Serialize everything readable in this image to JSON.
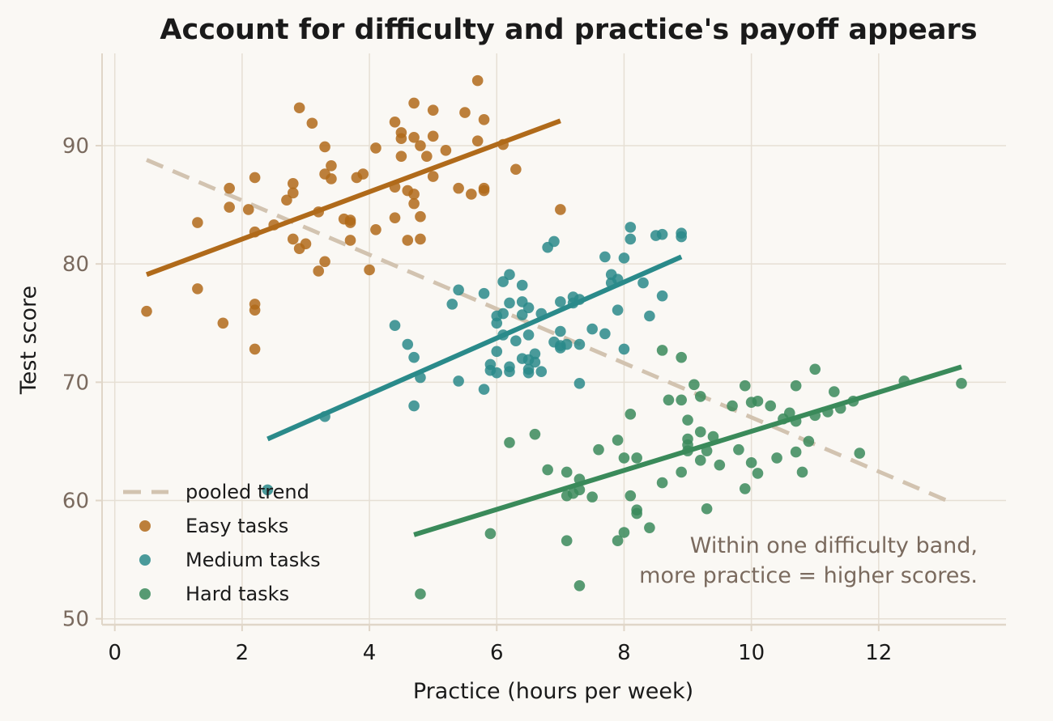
{
  "chart_data": {
    "type": "scatter",
    "title": "Account for difficulty and practice's payoff appears",
    "xlabel": "Practice (hours per week)",
    "ylabel": "Test score",
    "xlim": [
      -0.2,
      14.0
    ],
    "ylim": [
      49.5,
      97.8
    ],
    "xticks": [
      0,
      2,
      4,
      6,
      8,
      10,
      12
    ],
    "yticks": [
      50,
      60,
      70,
      80,
      90
    ],
    "grid": true,
    "legend_position": "lower-left",
    "annotation": [
      "Within one difficulty band,",
      "more practice = higher scores."
    ],
    "pooled_trend": {
      "name": "pooled trend",
      "color": "#d2c3b0",
      "style": "dashed",
      "x": [
        0.5,
        13.2
      ],
      "y": [
        88.8,
        59.7
      ]
    },
    "series": [
      {
        "name": "Easy tasks",
        "color": "#b06a1a",
        "fit": {
          "x": [
            0.5,
            7.0
          ],
          "y": [
            79.1,
            92.1
          ]
        },
        "points": [
          [
            0.5,
            76.0
          ],
          [
            1.3,
            83.5
          ],
          [
            1.3,
            77.9
          ],
          [
            1.7,
            75.0
          ],
          [
            1.8,
            86.4
          ],
          [
            1.8,
            84.8
          ],
          [
            2.1,
            84.6
          ],
          [
            2.2,
            82.7
          ],
          [
            2.2,
            76.6
          ],
          [
            2.2,
            76.1
          ],
          [
            2.2,
            87.3
          ],
          [
            2.2,
            72.8
          ],
          [
            2.5,
            83.3
          ],
          [
            2.7,
            85.4
          ],
          [
            2.8,
            82.1
          ],
          [
            2.8,
            86.0
          ],
          [
            2.8,
            86.8
          ],
          [
            2.9,
            93.2
          ],
          [
            2.9,
            81.3
          ],
          [
            3.0,
            81.7
          ],
          [
            3.1,
            91.9
          ],
          [
            3.2,
            84.4
          ],
          [
            3.2,
            79.4
          ],
          [
            3.3,
            87.6
          ],
          [
            3.3,
            89.9
          ],
          [
            3.3,
            80.2
          ],
          [
            3.4,
            88.3
          ],
          [
            3.4,
            87.2
          ],
          [
            3.6,
            83.8
          ],
          [
            3.7,
            83.7
          ],
          [
            3.7,
            83.5
          ],
          [
            3.7,
            82.0
          ],
          [
            3.8,
            87.3
          ],
          [
            3.9,
            87.6
          ],
          [
            4.0,
            79.5
          ],
          [
            4.1,
            89.8
          ],
          [
            4.1,
            82.9
          ],
          [
            4.4,
            92.0
          ],
          [
            4.4,
            86.5
          ],
          [
            4.4,
            83.9
          ],
          [
            4.5,
            90.6
          ],
          [
            4.5,
            91.1
          ],
          [
            4.5,
            89.1
          ],
          [
            4.6,
            82.0
          ],
          [
            4.6,
            86.2
          ],
          [
            4.7,
            90.7
          ],
          [
            4.7,
            93.6
          ],
          [
            4.7,
            85.1
          ],
          [
            4.7,
            85.9
          ],
          [
            4.8,
            84.0
          ],
          [
            4.8,
            82.1
          ],
          [
            4.8,
            90.0
          ],
          [
            4.9,
            89.1
          ],
          [
            5.0,
            87.4
          ],
          [
            5.0,
            90.8
          ],
          [
            5.0,
            93.0
          ],
          [
            5.2,
            89.6
          ],
          [
            5.4,
            86.4
          ],
          [
            5.5,
            92.8
          ],
          [
            5.6,
            85.9
          ],
          [
            5.7,
            95.5
          ],
          [
            5.7,
            90.4
          ],
          [
            5.8,
            86.4
          ],
          [
            5.8,
            86.2
          ],
          [
            5.8,
            92.2
          ],
          [
            6.1,
            90.1
          ],
          [
            6.3,
            88.0
          ],
          [
            7.0,
            84.6
          ]
        ]
      },
      {
        "name": "Medium tasks",
        "color": "#2a8a8a",
        "fit": {
          "x": [
            2.4,
            8.9
          ],
          "y": [
            65.2,
            80.6
          ]
        },
        "points": [
          [
            2.4,
            60.9
          ],
          [
            3.3,
            67.1
          ],
          [
            4.4,
            74.8
          ],
          [
            4.6,
            73.2
          ],
          [
            4.7,
            68.0
          ],
          [
            4.7,
            72.1
          ],
          [
            4.8,
            70.4
          ],
          [
            5.3,
            76.6
          ],
          [
            5.4,
            70.1
          ],
          [
            5.4,
            77.8
          ],
          [
            5.8,
            77.5
          ],
          [
            5.8,
            69.4
          ],
          [
            5.9,
            71.0
          ],
          [
            5.9,
            71.5
          ],
          [
            6.0,
            70.8
          ],
          [
            6.0,
            75.0
          ],
          [
            6.0,
            72.6
          ],
          [
            6.0,
            75.6
          ],
          [
            6.1,
            74.0
          ],
          [
            6.1,
            78.5
          ],
          [
            6.1,
            75.8
          ],
          [
            6.2,
            76.7
          ],
          [
            6.2,
            79.1
          ],
          [
            6.2,
            70.9
          ],
          [
            6.2,
            71.3
          ],
          [
            6.3,
            73.5
          ],
          [
            6.4,
            75.7
          ],
          [
            6.4,
            78.2
          ],
          [
            6.4,
            76.8
          ],
          [
            6.4,
            72.0
          ],
          [
            6.5,
            74.0
          ],
          [
            6.5,
            71.1
          ],
          [
            6.5,
            70.8
          ],
          [
            6.5,
            76.3
          ],
          [
            6.5,
            71.9
          ],
          [
            6.6,
            72.4
          ],
          [
            6.6,
            71.7
          ],
          [
            6.7,
            70.9
          ],
          [
            6.7,
            75.8
          ],
          [
            6.8,
            81.4
          ],
          [
            6.9,
            81.9
          ],
          [
            6.9,
            73.4
          ],
          [
            7.0,
            76.8
          ],
          [
            7.0,
            74.3
          ],
          [
            7.0,
            73.1
          ],
          [
            7.0,
            72.9
          ],
          [
            7.1,
            73.2
          ],
          [
            7.2,
            76.7
          ],
          [
            7.2,
            77.2
          ],
          [
            7.3,
            77.0
          ],
          [
            7.3,
            73.2
          ],
          [
            7.3,
            69.9
          ],
          [
            7.5,
            74.5
          ],
          [
            7.7,
            74.1
          ],
          [
            7.7,
            80.6
          ],
          [
            7.8,
            79.1
          ],
          [
            7.8,
            78.4
          ],
          [
            7.9,
            76.1
          ],
          [
            7.9,
            78.7
          ],
          [
            8.0,
            80.5
          ],
          [
            8.0,
            72.8
          ],
          [
            8.1,
            82.1
          ],
          [
            8.1,
            83.1
          ],
          [
            8.3,
            78.4
          ],
          [
            8.4,
            75.6
          ],
          [
            8.5,
            82.4
          ],
          [
            8.6,
            82.5
          ],
          [
            8.6,
            77.3
          ],
          [
            8.9,
            82.6
          ],
          [
            8.9,
            82.3
          ]
        ]
      },
      {
        "name": "Hard tasks",
        "color": "#3a8a5a",
        "fit": {
          "x": [
            4.7,
            13.3
          ],
          "y": [
            57.1,
            71.3
          ]
        },
        "points": [
          [
            4.8,
            52.1
          ],
          [
            5.9,
            57.2
          ],
          [
            6.2,
            64.9
          ],
          [
            6.6,
            65.6
          ],
          [
            6.8,
            62.6
          ],
          [
            7.1,
            56.6
          ],
          [
            7.1,
            62.4
          ],
          [
            7.1,
            60.4
          ],
          [
            7.2,
            60.6
          ],
          [
            7.3,
            52.8
          ],
          [
            7.3,
            60.9
          ],
          [
            7.3,
            61.8
          ],
          [
            7.5,
            60.3
          ],
          [
            7.6,
            64.3
          ],
          [
            7.9,
            65.1
          ],
          [
            7.9,
            56.6
          ],
          [
            8.0,
            63.6
          ],
          [
            8.0,
            57.3
          ],
          [
            8.1,
            67.3
          ],
          [
            8.1,
            60.4
          ],
          [
            8.2,
            63.6
          ],
          [
            8.2,
            59.2
          ],
          [
            8.2,
            58.9
          ],
          [
            8.4,
            57.7
          ],
          [
            8.6,
            72.7
          ],
          [
            8.6,
            61.5
          ],
          [
            8.7,
            68.5
          ],
          [
            8.9,
            72.1
          ],
          [
            8.9,
            62.4
          ],
          [
            8.9,
            68.5
          ],
          [
            9.0,
            66.8
          ],
          [
            9.0,
            65.2
          ],
          [
            9.0,
            64.7
          ],
          [
            9.0,
            64.2
          ],
          [
            9.1,
            69.8
          ],
          [
            9.2,
            68.8
          ],
          [
            9.2,
            65.8
          ],
          [
            9.2,
            63.4
          ],
          [
            9.3,
            64.2
          ],
          [
            9.3,
            59.3
          ],
          [
            9.4,
            65.4
          ],
          [
            9.5,
            63.0
          ],
          [
            9.7,
            68.0
          ],
          [
            9.8,
            64.3
          ],
          [
            9.9,
            69.7
          ],
          [
            9.9,
            61.0
          ],
          [
            10.0,
            68.3
          ],
          [
            10.0,
            63.2
          ],
          [
            10.1,
            68.4
          ],
          [
            10.1,
            62.3
          ],
          [
            10.3,
            68.0
          ],
          [
            10.4,
            63.6
          ],
          [
            10.5,
            66.9
          ],
          [
            10.6,
            67.4
          ],
          [
            10.7,
            69.7
          ],
          [
            10.7,
            66.7
          ],
          [
            10.7,
            64.1
          ],
          [
            10.8,
            62.4
          ],
          [
            10.9,
            65.0
          ],
          [
            11.0,
            67.2
          ],
          [
            11.0,
            71.1
          ],
          [
            11.2,
            67.5
          ],
          [
            11.3,
            69.2
          ],
          [
            11.4,
            67.8
          ],
          [
            11.6,
            68.4
          ],
          [
            11.7,
            64.0
          ],
          [
            12.4,
            70.1
          ],
          [
            13.3,
            69.9
          ]
        ]
      }
    ]
  }
}
